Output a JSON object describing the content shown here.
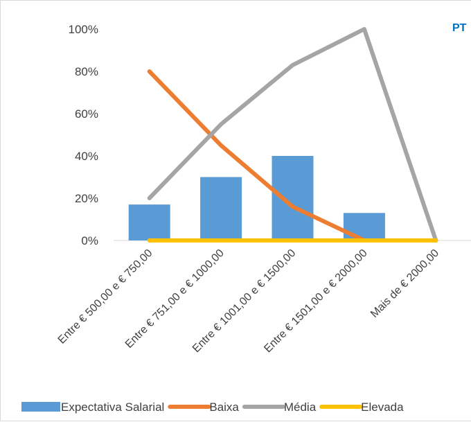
{
  "chart_data": {
    "type": "bar",
    "categories": [
      "Entre € 500,00 e € 750,00",
      "Entre € 751,00 e € 1000,00",
      "Entre € 1001,00 e € 1500,00",
      "Entre € 1501,00 e € 2000,00",
      "Mais de € 2000,00"
    ],
    "series": [
      {
        "name": "Expectativa Salarial",
        "kind": "bar",
        "color": "#5b9bd5",
        "values": [
          0.17,
          0.3,
          0.4,
          0.13,
          0.0
        ]
      },
      {
        "name": "Baixa",
        "kind": "line",
        "color": "#ed7d31",
        "values": [
          0.8,
          0.45,
          0.16,
          0.0,
          0.0
        ]
      },
      {
        "name": "Média",
        "kind": "line",
        "color": "#a5a5a5",
        "values": [
          0.2,
          0.55,
          0.83,
          1.0,
          0.0
        ]
      },
      {
        "name": "Elevada",
        "kind": "line",
        "color": "#ffc000",
        "values": [
          0.0,
          0.0,
          0.0,
          0.0,
          0.0
        ]
      }
    ],
    "y_ticks": [
      "0%",
      "20%",
      "40%",
      "60%",
      "80%",
      "100%"
    ],
    "ylim": [
      0,
      1
    ],
    "grid": false,
    "legend": "bottom",
    "corner_tag": "PT"
  }
}
